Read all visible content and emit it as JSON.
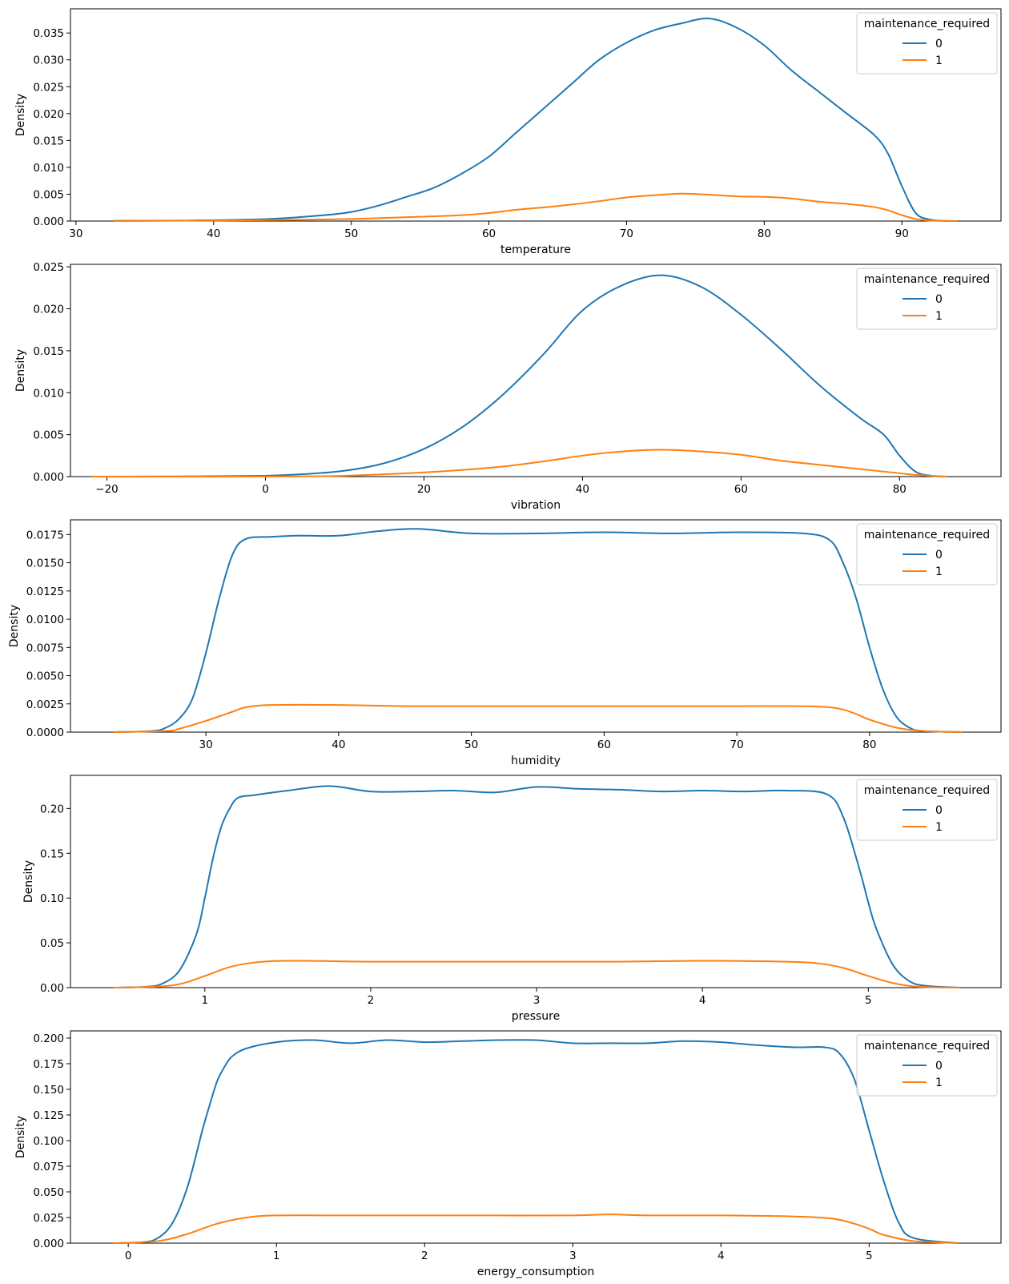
{
  "chart_data": [
    {
      "type": "line",
      "xlabel": "temperature",
      "ylabel": "Density",
      "xlim": [
        29.6,
        97.2
      ],
      "ylim": [
        0,
        0.0395
      ],
      "xticks": [
        30,
        40,
        50,
        60,
        70,
        80,
        90
      ],
      "yticks": [
        0.0,
        0.005,
        0.01,
        0.015,
        0.02,
        0.025,
        0.03,
        0.035
      ],
      "ytick_labels": [
        "0.000",
        "0.005",
        "0.010",
        "0.015",
        "0.020",
        "0.025",
        "0.030",
        "0.035"
      ],
      "legend": {
        "title": "maintenance_required",
        "placement": "top-right",
        "entries": [
          "0",
          "1"
        ]
      },
      "series": [
        {
          "name": "0",
          "color": "#1f77b4",
          "x": [
            32.7,
            38,
            44,
            48,
            50,
            52,
            54,
            56,
            58,
            60,
            62,
            64,
            66,
            68,
            70,
            72,
            74,
            76,
            78,
            80,
            82,
            84,
            86,
            88,
            89,
            90,
            91,
            92,
            93,
            94
          ],
          "y": [
            5e-05,
            0.0001,
            0.0004,
            0.0011,
            0.0017,
            0.0029,
            0.0045,
            0.0062,
            0.0088,
            0.012,
            0.0165,
            0.021,
            0.0255,
            0.03,
            0.0332,
            0.0355,
            0.0368,
            0.0377,
            0.036,
            0.0327,
            0.028,
            0.024,
            0.02,
            0.016,
            0.0125,
            0.0065,
            0.0015,
            0.0003,
            5e-05,
            0.0
          ]
        },
        {
          "name": "1",
          "color": "#ff7f0e",
          "x": [
            32.7,
            40,
            45,
            50,
            55,
            58,
            60,
            62,
            65,
            68,
            70,
            72,
            74,
            76,
            78,
            80,
            82,
            84,
            86,
            88,
            89,
            90,
            91,
            92,
            94
          ],
          "y": [
            0.0,
            0.0001,
            0.0002,
            0.0004,
            0.0008,
            0.0011,
            0.0015,
            0.0021,
            0.0028,
            0.0037,
            0.0044,
            0.0048,
            0.0051,
            0.0049,
            0.0046,
            0.0045,
            0.0042,
            0.0036,
            0.0032,
            0.0026,
            0.002,
            0.0011,
            0.0004,
            0.0001,
            0.0
          ]
        }
      ]
    },
    {
      "type": "line",
      "xlabel": "vibration",
      "ylabel": "Density",
      "xlim": [
        -24.6,
        92.8
      ],
      "ylim": [
        0,
        0.0253
      ],
      "xticks": [
        -20,
        0,
        20,
        40,
        60,
        80
      ],
      "xtick_labels": [
        "−20",
        "0",
        "20",
        "40",
        "60",
        "80"
      ],
      "yticks": [
        0.0,
        0.005,
        0.01,
        0.015,
        0.02,
        0.025
      ],
      "ytick_labels": [
        "0.000",
        "0.005",
        "0.010",
        "0.015",
        "0.020",
        "0.025"
      ],
      "legend": {
        "title": "maintenance_required",
        "placement": "top-right",
        "entries": [
          "0",
          "1"
        ]
      },
      "series": [
        {
          "name": "0",
          "color": "#1f77b4",
          "x": [
            -22,
            -10,
            0,
            5,
            10,
            15,
            20,
            25,
            30,
            35,
            40,
            45,
            50,
            55,
            60,
            65,
            70,
            75,
            78,
            80,
            82,
            84,
            86
          ],
          "y": [
            0.0,
            2e-05,
            0.0001,
            0.0003,
            0.0007,
            0.0016,
            0.0033,
            0.006,
            0.0098,
            0.0145,
            0.0198,
            0.0228,
            0.024,
            0.0226,
            0.0193,
            0.0152,
            0.0108,
            0.007,
            0.005,
            0.0025,
            0.0006,
            0.0001,
            0.0
          ]
        },
        {
          "name": "1",
          "color": "#ff7f0e",
          "x": [
            -22,
            0,
            10,
            20,
            25,
            30,
            35,
            40,
            45,
            50,
            55,
            60,
            65,
            70,
            75,
            80,
            82,
            86
          ],
          "y": [
            0.0,
            1e-05,
            0.0001,
            0.0005,
            0.0008,
            0.0012,
            0.0018,
            0.0025,
            0.003,
            0.0032,
            0.003,
            0.0026,
            0.0019,
            0.0014,
            0.0009,
            0.0004,
            0.0002,
            0.0
          ]
        }
      ]
    },
    {
      "type": "line",
      "xlabel": "humidity",
      "ylabel": "Density",
      "xlim": [
        19.8,
        89.9
      ],
      "ylim": [
        0,
        0.0188
      ],
      "xticks": [
        30,
        40,
        50,
        60,
        70,
        80
      ],
      "yticks": [
        0.0,
        0.0025,
        0.005,
        0.0075,
        0.01,
        0.0125,
        0.015,
        0.0175
      ],
      "ytick_labels": [
        "0.0000",
        "0.0025",
        "0.0050",
        "0.0075",
        "0.0100",
        "0.0125",
        "0.0150",
        "0.0175"
      ],
      "legend": {
        "title": "maintenance_required",
        "placement": "top-right",
        "entries": [
          "0",
          "1"
        ]
      },
      "series": [
        {
          "name": "0",
          "color": "#1f77b4",
          "x": [
            23,
            26,
            27,
            28,
            29,
            30,
            31,
            32,
            33,
            35,
            37,
            40,
            43,
            46,
            50,
            55,
            60,
            65,
            70,
            75,
            77,
            78,
            79,
            80,
            81,
            82,
            83,
            84,
            87
          ],
          "y": [
            0.0,
            0.0001,
            0.0004,
            0.0012,
            0.003,
            0.007,
            0.0118,
            0.0157,
            0.0171,
            0.0173,
            0.0174,
            0.0174,
            0.0178,
            0.018,
            0.0176,
            0.0176,
            0.0177,
            0.0176,
            0.0177,
            0.0176,
            0.017,
            0.015,
            0.0118,
            0.0075,
            0.0038,
            0.0014,
            0.0004,
            0.0001,
            0.0
          ]
        },
        {
          "name": "1",
          "color": "#ff7f0e",
          "x": [
            23,
            27,
            28,
            30,
            32,
            33,
            35,
            40,
            45,
            50,
            55,
            60,
            65,
            70,
            75,
            77,
            78,
            79,
            80,
            82,
            84,
            87
          ],
          "y": [
            0.0,
            0.0001,
            0.0003,
            0.001,
            0.0018,
            0.0022,
            0.0024,
            0.0024,
            0.0023,
            0.0023,
            0.0023,
            0.0023,
            0.0023,
            0.0023,
            0.0023,
            0.0022,
            0.002,
            0.0016,
            0.0011,
            0.0004,
            0.0001,
            0.0
          ]
        }
      ]
    },
    {
      "type": "line",
      "xlabel": "pressure",
      "ylabel": "Density",
      "xlim": [
        0.19,
        5.8
      ],
      "ylim": [
        0,
        0.237
      ],
      "xticks": [
        1,
        2,
        3,
        4,
        5
      ],
      "yticks": [
        0.0,
        0.05,
        0.1,
        0.15,
        0.2
      ],
      "ytick_labels": [
        "0.00",
        "0.05",
        "0.10",
        "0.15",
        "0.20"
      ],
      "legend": {
        "title": "maintenance_required",
        "placement": "top-right",
        "entries": [
          "0",
          "1"
        ]
      },
      "series": [
        {
          "name": "0",
          "color": "#1f77b4",
          "x": [
            0.45,
            0.65,
            0.75,
            0.85,
            0.95,
            1.0,
            1.05,
            1.1,
            1.15,
            1.2,
            1.3,
            1.5,
            1.75,
            2.0,
            2.25,
            2.5,
            2.75,
            3.0,
            3.25,
            3.5,
            3.75,
            4.0,
            4.25,
            4.5,
            4.75,
            4.85,
            4.95,
            5.0,
            5.05,
            5.15,
            5.25,
            5.35,
            5.55
          ],
          "y": [
            0.0,
            0.001,
            0.005,
            0.02,
            0.06,
            0.1,
            0.145,
            0.18,
            0.2,
            0.212,
            0.215,
            0.22,
            0.225,
            0.219,
            0.219,
            0.22,
            0.218,
            0.224,
            0.222,
            0.221,
            0.219,
            0.22,
            0.219,
            0.22,
            0.216,
            0.19,
            0.13,
            0.095,
            0.065,
            0.025,
            0.007,
            0.002,
            0.0
          ]
        },
        {
          "name": "1",
          "color": "#ff7f0e",
          "x": [
            0.45,
            0.7,
            0.85,
            1.0,
            1.15,
            1.3,
            1.5,
            2.0,
            2.5,
            3.0,
            3.5,
            4.0,
            4.5,
            4.7,
            4.85,
            5.0,
            5.15,
            5.3,
            5.55
          ],
          "y": [
            0.0,
            0.001,
            0.004,
            0.013,
            0.023,
            0.028,
            0.03,
            0.029,
            0.029,
            0.029,
            0.029,
            0.03,
            0.029,
            0.027,
            0.022,
            0.013,
            0.005,
            0.001,
            0.0
          ]
        }
      ]
    },
    {
      "type": "line",
      "xlabel": "energy_consumption",
      "ylabel": "Density",
      "xlim": [
        -0.39,
        5.89
      ],
      "ylim": [
        0,
        0.207
      ],
      "xticks": [
        0,
        1,
        2,
        3,
        4,
        5
      ],
      "yticks": [
        0.0,
        0.025,
        0.05,
        0.075,
        0.1,
        0.125,
        0.15,
        0.175,
        0.2
      ],
      "ytick_labels": [
        "0.000",
        "0.025",
        "0.050",
        "0.075",
        "0.100",
        "0.125",
        "0.150",
        "0.175",
        "0.200"
      ],
      "legend": {
        "title": "maintenance_required",
        "placement": "top-right",
        "entries": [
          "0",
          "1"
        ]
      },
      "series": [
        {
          "name": "0",
          "color": "#1f77b4",
          "x": [
            -0.1,
            0.1,
            0.2,
            0.3,
            0.4,
            0.5,
            0.55,
            0.6,
            0.65,
            0.7,
            0.8,
            1.0,
            1.25,
            1.5,
            1.75,
            2.0,
            2.25,
            2.5,
            2.75,
            3.0,
            3.25,
            3.5,
            3.75,
            4.0,
            4.25,
            4.5,
            4.7,
            4.8,
            4.9,
            5.0,
            5.1,
            5.2,
            5.3,
            5.6
          ],
          "y": [
            0.0,
            0.001,
            0.005,
            0.02,
            0.055,
            0.11,
            0.135,
            0.158,
            0.172,
            0.182,
            0.19,
            0.196,
            0.198,
            0.195,
            0.198,
            0.196,
            0.197,
            0.198,
            0.198,
            0.195,
            0.195,
            0.195,
            0.197,
            0.196,
            0.193,
            0.191,
            0.191,
            0.185,
            0.16,
            0.11,
            0.06,
            0.02,
            0.005,
            0.0
          ]
        },
        {
          "name": "1",
          "color": "#ff7f0e",
          "x": [
            -0.1,
            0.2,
            0.4,
            0.6,
            0.8,
            1.0,
            1.5,
            2.0,
            2.5,
            3.0,
            3.25,
            3.5,
            4.0,
            4.5,
            4.75,
            4.9,
            5.0,
            5.1,
            5.3,
            5.6
          ],
          "y": [
            0.0,
            0.002,
            0.009,
            0.019,
            0.025,
            0.027,
            0.027,
            0.027,
            0.027,
            0.027,
            0.028,
            0.027,
            0.027,
            0.026,
            0.024,
            0.019,
            0.014,
            0.008,
            0.002,
            0.0
          ]
        }
      ]
    }
  ]
}
